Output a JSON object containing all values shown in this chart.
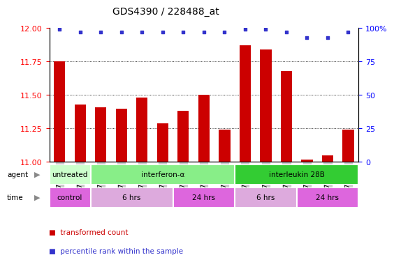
{
  "title": "GDS4390 / 228488_at",
  "samples": [
    "GSM773317",
    "GSM773318",
    "GSM773319",
    "GSM773323",
    "GSM773324",
    "GSM773325",
    "GSM773320",
    "GSM773321",
    "GSM773322",
    "GSM773329",
    "GSM773330",
    "GSM773331",
    "GSM773326",
    "GSM773327",
    "GSM773328"
  ],
  "bar_values": [
    11.75,
    11.43,
    11.41,
    11.4,
    11.48,
    11.29,
    11.38,
    11.5,
    11.24,
    11.87,
    11.84,
    11.68,
    11.02,
    11.05,
    11.24
  ],
  "percentile_values": [
    99,
    97,
    97,
    97,
    97,
    97,
    97,
    97,
    97,
    99,
    99,
    97,
    93,
    93,
    97
  ],
  "bar_color": "#cc0000",
  "dot_color": "#3333cc",
  "ylim_left": [
    11.0,
    12.0
  ],
  "ylim_right": [
    0,
    100
  ],
  "yticks_left": [
    11.0,
    11.25,
    11.5,
    11.75,
    12.0
  ],
  "yticks_right": [
    0,
    25,
    50,
    75,
    100
  ],
  "grid_lines": [
    11.25,
    11.5,
    11.75
  ],
  "agent_groups": [
    {
      "label": "untreated",
      "start": 0,
      "end": 2,
      "color": "#ccffcc"
    },
    {
      "label": "interferon-α",
      "start": 2,
      "end": 9,
      "color": "#88ee88"
    },
    {
      "label": "interleukin 28B",
      "start": 9,
      "end": 15,
      "color": "#33cc33"
    }
  ],
  "time_groups": [
    {
      "label": "control",
      "start": 0,
      "end": 2,
      "color": "#dd66dd"
    },
    {
      "label": "6 hrs",
      "start": 2,
      "end": 6,
      "color": "#ddaadd"
    },
    {
      "label": "24 hrs",
      "start": 6,
      "end": 9,
      "color": "#dd66dd"
    },
    {
      "label": "6 hrs",
      "start": 9,
      "end": 12,
      "color": "#ddaadd"
    },
    {
      "label": "24 hrs",
      "start": 12,
      "end": 15,
      "color": "#dd66dd"
    }
  ],
  "legend_items": [
    {
      "label": "transformed count",
      "color": "#cc0000"
    },
    {
      "label": "percentile rank within the sample",
      "color": "#3333cc"
    }
  ],
  "bar_width": 0.55,
  "xticklabel_fontsize": 6.5,
  "yticklabel_fontsize": 8,
  "title_fontsize": 10,
  "annotation_fontsize": 7.5,
  "legend_fontsize": 7.5
}
